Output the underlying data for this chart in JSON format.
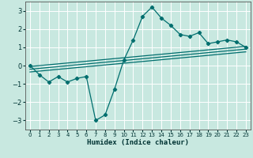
{
  "xlabel": "Humidex (Indice chaleur)",
  "bg_color": "#c8e8e0",
  "grid_color": "#ffffff",
  "line_color": "#006e6e",
  "x_data": [
    0,
    1,
    2,
    3,
    4,
    5,
    6,
    7,
    8,
    9,
    10,
    11,
    12,
    13,
    14,
    15,
    16,
    17,
    18,
    19,
    20,
    21,
    22,
    23
  ],
  "y_data": [
    0.0,
    -0.5,
    -0.9,
    -0.6,
    -0.9,
    -0.7,
    -0.6,
    -3.0,
    -2.7,
    -1.3,
    0.3,
    1.4,
    2.7,
    3.2,
    2.6,
    2.2,
    1.7,
    1.6,
    1.8,
    1.2,
    1.3,
    1.4,
    1.3,
    1.0
  ],
  "reg_lines": [
    {
      "x0": 0,
      "y0": -0.05,
      "x1": 23,
      "y1": 1.05
    },
    {
      "x0": 0,
      "y0": -0.2,
      "x1": 23,
      "y1": 0.9
    },
    {
      "x0": 0,
      "y0": -0.35,
      "x1": 23,
      "y1": 0.75
    }
  ],
  "ylim": [
    -3.5,
    3.5
  ],
  "xlim": [
    -0.5,
    23.5
  ],
  "yticks": [
    -3,
    -2,
    -1,
    0,
    1,
    2,
    3
  ],
  "xticks": [
    0,
    1,
    2,
    3,
    4,
    5,
    6,
    7,
    8,
    9,
    10,
    11,
    12,
    13,
    14,
    15,
    16,
    17,
    18,
    19,
    20,
    21,
    22,
    23
  ]
}
